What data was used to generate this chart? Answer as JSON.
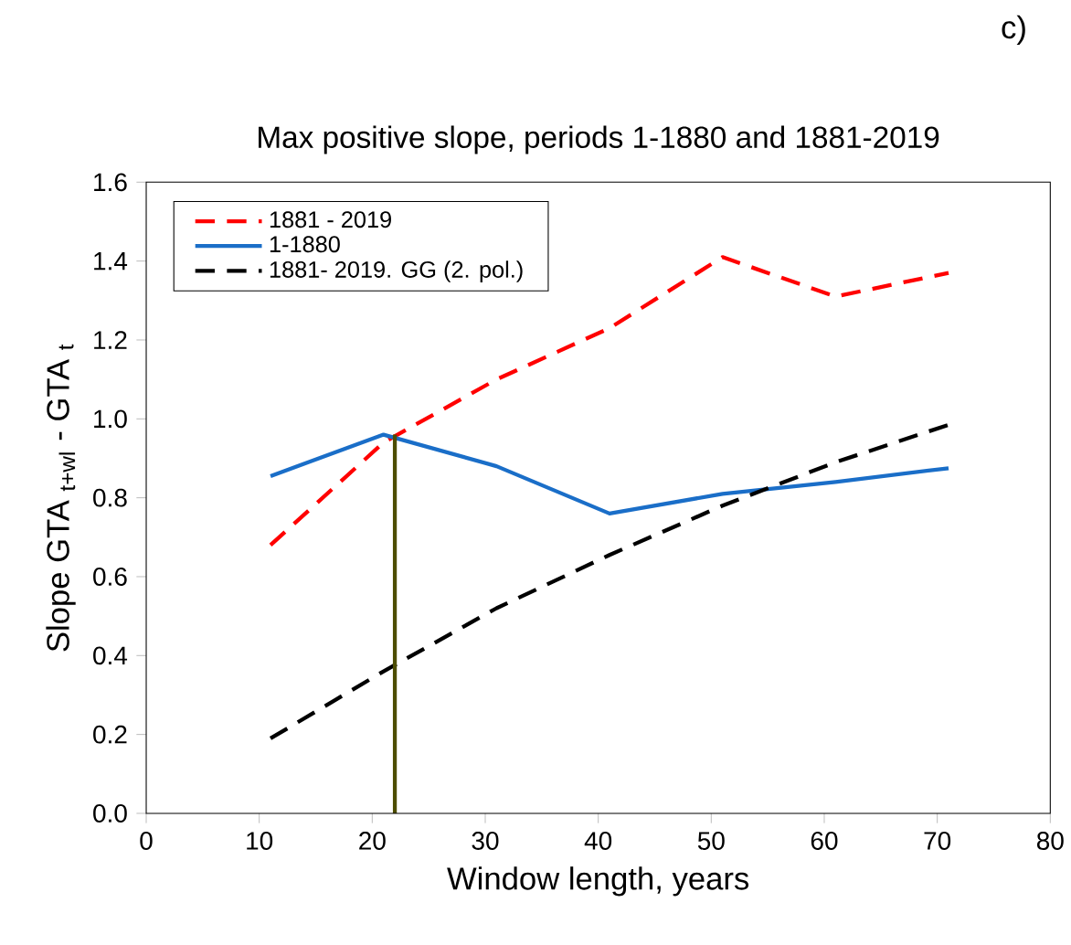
{
  "chart_data": {
    "type": "line",
    "title": "Max positive slope, periods 1-1880 and 1881-2019",
    "xlabel": "Window length, years",
    "ylabel": "Slope GTA $_{t+wl}$ - GTA $_{t}$",
    "annotations": [
      "c)"
    ],
    "series": [
      {
        "name": "1881 - 2019",
        "color": "#ff0000",
        "line_style": "dashed",
        "x": [
          11,
          21,
          31,
          41,
          51,
          61,
          71
        ],
        "values": [
          0.68,
          0.94,
          1.1,
          1.23,
          1.41,
          1.31,
          1.37
        ]
      },
      {
        "name": "1-1880",
        "color": "#1a6ec8",
        "line_style": "solid",
        "x": [
          11,
          21,
          31,
          41,
          51,
          61,
          71
        ],
        "values": [
          0.855,
          0.96,
          0.88,
          0.76,
          0.81,
          0.84,
          0.875
        ]
      },
      {
        "name": "1881- 2019. GG (2. pol.)",
        "color": "#000000",
        "line_style": "dashed",
        "x": [
          11,
          21,
          31,
          41,
          51,
          61,
          71
        ],
        "values": [
          0.19,
          0.36,
          0.52,
          0.655,
          0.78,
          0.89,
          0.985
        ]
      },
      {
        "color": "#4d4d00",
        "line_style": "solid",
        "x": [
          22,
          22
        ],
        "values": [
          0,
          0.96
        ]
      }
    ],
    "xlim": [
      0,
      80
    ],
    "xticks": [
      0,
      10,
      20,
      30,
      40,
      50,
      60,
      70,
      80
    ],
    "ylim": [
      0,
      1.6
    ],
    "yticks": [
      {
        "value": 0,
        "label": "0.0"
      },
      0.2,
      0.4,
      0.6,
      0.8,
      {
        "value": 1,
        "label": "1.0"
      },
      1.2,
      1.4,
      1.6
    ],
    "legend": "top left",
    "grid": false,
    "marker": "none"
  }
}
